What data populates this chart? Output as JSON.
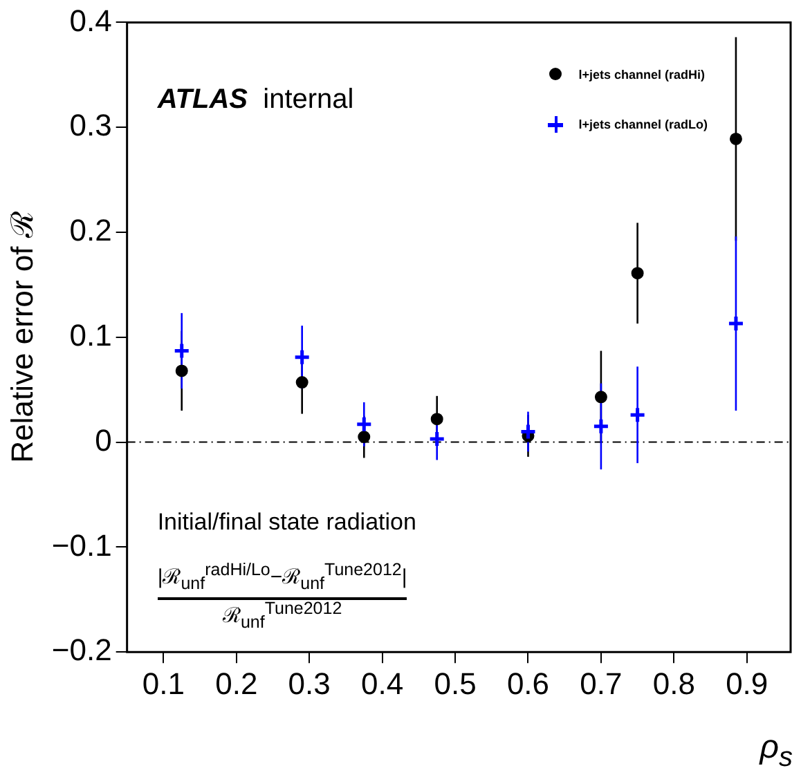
{
  "chart_data": {
    "type": "scatter",
    "xlabel": "ρ$_{s}$",
    "ylabel": "Relative error of ℛ",
    "x": [
      0.125,
      0.29,
      0.375,
      0.475,
      0.6,
      0.7,
      0.75,
      0.885
    ],
    "series": [
      {
        "name": "l+jets channel (radHi)",
        "color": "#000000",
        "marker": "circle",
        "values": [
          0.068,
          0.057,
          0.005,
          0.022,
          0.006,
          0.043,
          0.161,
          0.289
        ],
        "errors": [
          0.038,
          0.03,
          0.02,
          0.022,
          0.02,
          0.044,
          0.048,
          0.097
        ]
      },
      {
        "name": "l+jets channel (radLo)",
        "color": "#0000ff",
        "marker": "cross",
        "values": [
          0.087,
          0.081,
          0.017,
          0.003,
          0.01,
          0.015,
          0.026,
          0.113
        ],
        "errors": [
          0.036,
          0.03,
          0.021,
          0.02,
          0.019,
          0.041,
          0.046,
          0.083
        ]
      }
    ],
    "xlim": [
      0.05,
      0.96
    ],
    "xticks": [
      0.1,
      0.2,
      0.3,
      0.4,
      0.5,
      0.6,
      0.7,
      0.8,
      0.9
    ],
    "ylim": [
      -0.2,
      0.4
    ],
    "yticks": [
      {
        "value": -0.2,
        "label": "−0.2"
      },
      {
        "value": -0.1,
        "label": "−0.1"
      },
      0,
      0.1,
      0.2,
      0.3,
      0.4
    ],
    "ref_lines": [
      {
        "axis": "y",
        "value": 0,
        "line_style": "dashdot",
        "color": "#000000"
      }
    ],
    "legend": "top right",
    "grid": false,
    "annotations": [
      "ATLAS internal",
      "Initial/final state radiation",
      "|ℛ$_{unf}$$^{radHi/Lo}$−ℛ$_{unf}$$^{Tune2012}$|",
      "ℛ$_{unf}$$^{Tune2012}$"
    ]
  }
}
